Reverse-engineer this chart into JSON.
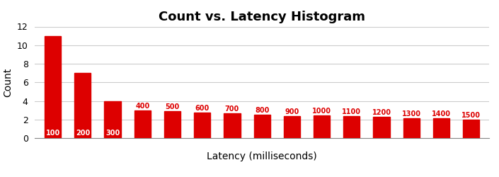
{
  "title": "Count vs. Latency Histogram",
  "xlabel": "Latency (milliseconds)",
  "ylabel": "Count",
  "bar_color": "#dd0000",
  "label_color_inside": "#ffffff",
  "label_color_outside": "#dd0000",
  "background_color": "#ffffff",
  "grid_color": "#cccccc",
  "categories": [
    100,
    200,
    300,
    400,
    500,
    600,
    700,
    800,
    900,
    1000,
    1100,
    1200,
    1300,
    1400,
    1500
  ],
  "values": [
    11.0,
    7.0,
    4.0,
    3.0,
    2.9,
    2.75,
    2.65,
    2.5,
    2.35,
    2.45,
    2.35,
    2.25,
    2.15,
    2.1,
    2.0
  ],
  "ylim": [
    0,
    12
  ],
  "yticks": [
    0,
    2,
    4,
    6,
    8,
    10,
    12
  ],
  "title_fontsize": 13,
  "axis_label_fontsize": 10,
  "bar_label_fontsize": 7,
  "bar_width": 0.55,
  "outside_label_threshold": 3.5,
  "figsize": [
    7.05,
    2.5
  ],
  "dpi": 100
}
